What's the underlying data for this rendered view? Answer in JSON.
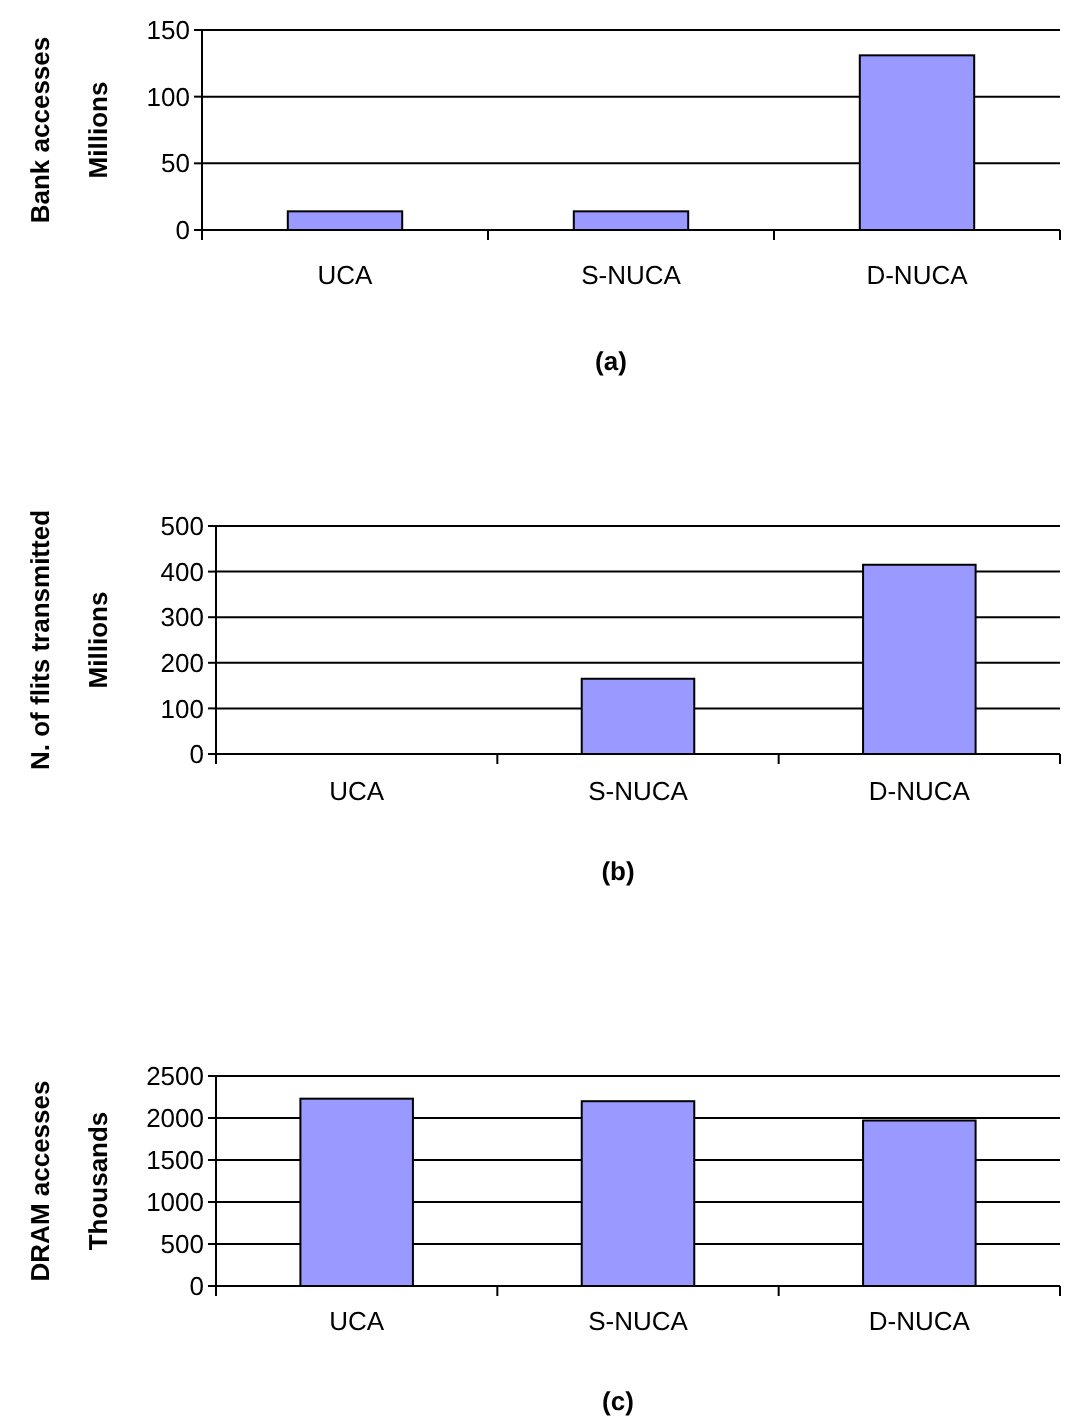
{
  "chart_data": [
    {
      "type": "bar",
      "ylabel": "Bank accesses\nMillions",
      "categories": [
        "UCA",
        "S-NUCA",
        "D-NUCA"
      ],
      "values": [
        14,
        14,
        131
      ],
      "color": "#9999ff",
      "ylim": [
        0,
        150
      ],
      "yticks": [
        0,
        50,
        100,
        150
      ],
      "grid": "y",
      "annotations": [
        "(a)"
      ]
    },
    {
      "type": "bar",
      "ylabel": "N. of flits transmitted\nMillions",
      "categories": [
        "UCA",
        "S-NUCA",
        "D-NUCA"
      ],
      "values": [
        0,
        165,
        415
      ],
      "color": "#9999ff",
      "ylim": [
        0,
        500
      ],
      "yticks": [
        0,
        100,
        200,
        300,
        400,
        500
      ],
      "grid": "y",
      "annotations": [
        "(b)"
      ]
    },
    {
      "type": "bar",
      "ylabel": "DRAM accesses\nThousands",
      "categories": [
        "UCA",
        "S-NUCA",
        "D-NUCA"
      ],
      "values": [
        2230,
        2200,
        1970
      ],
      "color": "#9999ff",
      "ylim": [
        0,
        2500
      ],
      "yticks": [
        0,
        500,
        1000,
        1500,
        2000,
        2500
      ],
      "grid": "y",
      "annotations": [
        "(c)"
      ]
    }
  ]
}
